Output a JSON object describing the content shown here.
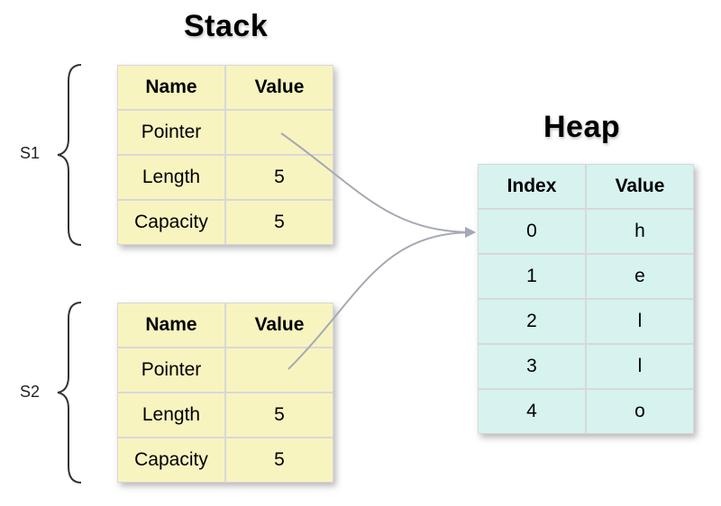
{
  "titles": {
    "stack": "Stack",
    "heap": "Heap"
  },
  "stack_frames": [
    {
      "label": "S1",
      "headers": [
        "Name",
        "Value"
      ],
      "rows": [
        [
          "Pointer",
          ""
        ],
        [
          "Length",
          "5"
        ],
        [
          "Capacity",
          "5"
        ]
      ]
    },
    {
      "label": "S2",
      "headers": [
        "Name",
        "Value"
      ],
      "rows": [
        [
          "Pointer",
          ""
        ],
        [
          "Length",
          "5"
        ],
        [
          "Capacity",
          "5"
        ]
      ]
    }
  ],
  "heap": {
    "headers": [
      "Index",
      "Value"
    ],
    "rows": [
      [
        "0",
        "h"
      ],
      [
        "1",
        "e"
      ],
      [
        "2",
        "l"
      ],
      [
        "3",
        "l"
      ],
      [
        "4",
        "o"
      ]
    ]
  },
  "colors": {
    "stack_cell": "#f8f4c0",
    "heap_cell": "#d6f3ef",
    "arrow": "#a6a9b4",
    "brace": "#333333"
  }
}
